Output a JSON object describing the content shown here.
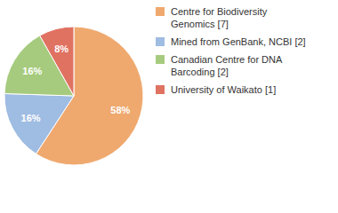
{
  "chart_data": {
    "type": "pie",
    "categories": [
      "Centre for Biodiversity Genomics [7]",
      "Mined from GenBank, NCBI [2]",
      "Canadian Centre for DNA Barcoding [2]",
      "University of Waikato [1]"
    ],
    "values": [
      58,
      16,
      16,
      8
    ],
    "value_labels": [
      "58%",
      "16%",
      "16%",
      "8%"
    ],
    "colors": [
      "#efa96f",
      "#9fbce2",
      "#a6cb7e",
      "#e07262"
    ],
    "data_labels": true,
    "legend": "right"
  }
}
